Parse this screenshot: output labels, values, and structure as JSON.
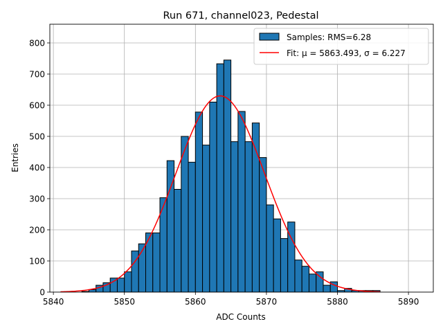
{
  "chart_data": {
    "type": "bar",
    "title": "Run 671, channel023, Pedestal",
    "xlabel": "ADC Counts",
    "ylabel": "Entries",
    "xlim": [
      5839.5,
      5893.5
    ],
    "ylim": [
      0,
      860
    ],
    "xticks": [
      5840,
      5850,
      5860,
      5870,
      5880,
      5890
    ],
    "yticks": [
      0,
      100,
      200,
      300,
      400,
      500,
      600,
      700,
      800
    ],
    "grid": true,
    "legend_position": "top-right",
    "histogram": {
      "name": "Samples: RMS=6.28",
      "color": "#1f77b4",
      "bin_width": 1,
      "bin_lefts": [
        5844,
        5845,
        5846,
        5847,
        5848,
        5849,
        5850,
        5851,
        5852,
        5853,
        5854,
        5855,
        5856,
        5857,
        5858,
        5859,
        5860,
        5861,
        5862,
        5863,
        5864,
        5865,
        5866,
        5867,
        5868,
        5869,
        5870,
        5871,
        5872,
        5873,
        5874,
        5875,
        5876,
        5877,
        5878,
        5879,
        5880,
        5881,
        5882,
        5883,
        5884,
        5885
      ],
      "counts": [
        2,
        8,
        22,
        30,
        45,
        45,
        65,
        132,
        155,
        190,
        190,
        303,
        422,
        330,
        500,
        417,
        578,
        472,
        610,
        733,
        745,
        483,
        580,
        483,
        543,
        432,
        280,
        235,
        172,
        225,
        103,
        83,
        58,
        65,
        22,
        33,
        5,
        12,
        5,
        5,
        5,
        5
      ]
    },
    "fit": {
      "name": "Fit: μ = 5863.493, σ = 6.227",
      "label_prefix": "Fit: ",
      "mu_label": "μ = 5863.493",
      "sigma_label": "σ = 6.227",
      "mu": 5863.493,
      "sigma": 6.227,
      "amplitude": 630,
      "x_range": [
        5841,
        5886
      ],
      "color": "#ff0000"
    }
  }
}
